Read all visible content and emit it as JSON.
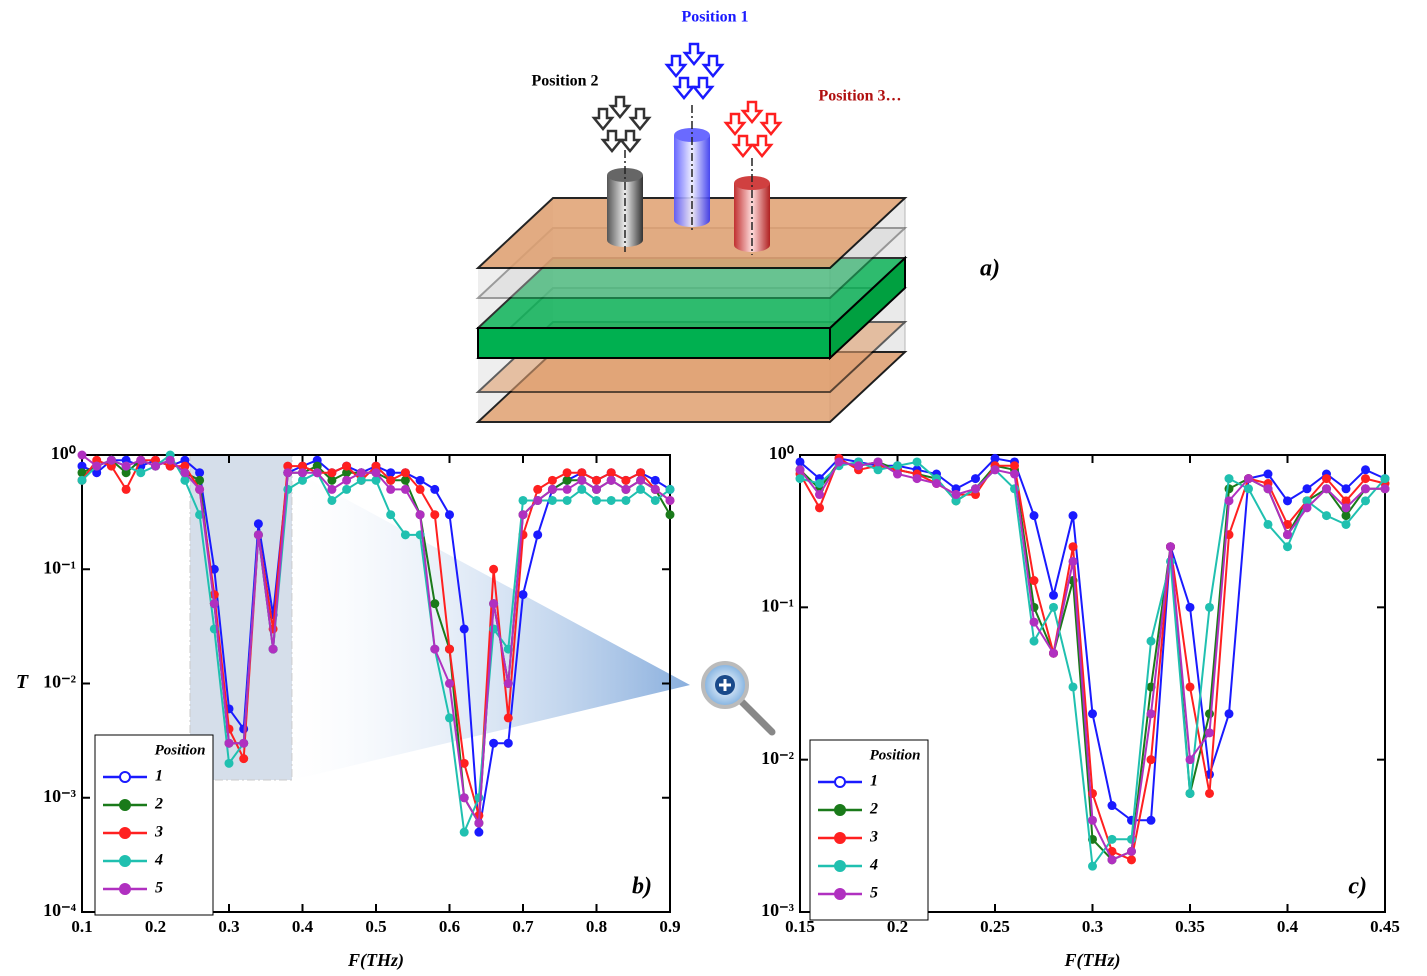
{
  "diagram": {
    "labels": [
      "Position 1",
      "Position 2",
      "Position 3…"
    ],
    "panel_label": "a)"
  },
  "chart_data": [
    {
      "type": "line",
      "log_y": true,
      "xlabel": "F(THz)",
      "ylabel": "T",
      "panel_label": "b)",
      "legend_title": "Position",
      "legend": "lower left",
      "xlim": [
        0.1,
        0.9
      ],
      "xticks": [
        0.1,
        0.2,
        0.3,
        0.4,
        0.5,
        0.6,
        0.7,
        0.8,
        0.9
      ],
      "ylim": [
        0.0001,
        1
      ],
      "yticks": [
        {
          "value": 0.0001,
          "label": "10⁻⁴"
        },
        {
          "value": 0.001,
          "label": "10⁻³"
        },
        {
          "value": 0.01,
          "label": "10⁻²"
        },
        {
          "value": 0.1,
          "label": "10⁻¹"
        },
        {
          "value": 1,
          "label": "10⁰"
        }
      ],
      "x": [
        0.1,
        0.12,
        0.14,
        0.16,
        0.18,
        0.2,
        0.22,
        0.24,
        0.26,
        0.28,
        0.3,
        0.32,
        0.34,
        0.36,
        0.38,
        0.4,
        0.42,
        0.44,
        0.46,
        0.48,
        0.5,
        0.52,
        0.54,
        0.56,
        0.58,
        0.6,
        0.62,
        0.64,
        0.66,
        0.68,
        0.7,
        0.72,
        0.74,
        0.76,
        0.78,
        0.8,
        0.82,
        0.84,
        0.86,
        0.88,
        0.9
      ],
      "series": [
        {
          "name": "1",
          "color": "#1a1aff",
          "values": [
            0.8,
            0.7,
            0.9,
            0.9,
            0.8,
            0.9,
            0.8,
            0.9,
            0.7,
            0.1,
            0.006,
            0.004,
            0.25,
            0.04,
            0.7,
            0.8,
            0.9,
            0.7,
            0.8,
            0.7,
            0.8,
            0.7,
            0.7,
            0.6,
            0.5,
            0.3,
            0.03,
            0.0005,
            0.003,
            0.003,
            0.06,
            0.2,
            0.5,
            0.6,
            0.7,
            0.6,
            0.7,
            0.6,
            0.7,
            0.6,
            0.5
          ]
        },
        {
          "name": "2",
          "color": "#1a7a1a",
          "values": [
            0.7,
            0.8,
            0.9,
            0.7,
            0.9,
            0.8,
            0.9,
            0.7,
            0.6,
            0.05,
            0.003,
            0.003,
            0.2,
            0.02,
            0.7,
            0.7,
            0.8,
            0.6,
            0.7,
            0.7,
            0.7,
            0.6,
            0.6,
            0.3,
            0.05,
            0.02,
            0.001,
            0.0006,
            0.05,
            0.01,
            0.3,
            0.4,
            0.5,
            0.6,
            0.6,
            0.5,
            0.6,
            0.5,
            0.6,
            0.5,
            0.3
          ]
        },
        {
          "name": "3",
          "color": "#ff2020",
          "values": [
            0.6,
            0.9,
            0.8,
            0.5,
            0.9,
            0.9,
            0.8,
            0.8,
            0.5,
            0.06,
            0.004,
            0.0022,
            0.2,
            0.03,
            0.8,
            0.8,
            0.7,
            0.7,
            0.8,
            0.6,
            0.8,
            0.6,
            0.7,
            0.5,
            0.3,
            0.02,
            0.002,
            0.0007,
            0.1,
            0.005,
            0.2,
            0.5,
            0.6,
            0.7,
            0.7,
            0.6,
            0.7,
            0.6,
            0.7,
            0.5,
            0.4
          ]
        },
        {
          "name": "4",
          "color": "#20c0b0",
          "values": [
            0.6,
            0.8,
            0.9,
            0.8,
            0.7,
            0.8,
            1,
            0.6,
            0.3,
            0.03,
            0.002,
            0.003,
            0.2,
            0.02,
            0.5,
            0.6,
            0.7,
            0.4,
            0.5,
            0.6,
            0.6,
            0.3,
            0.2,
            0.2,
            0.02,
            0.005,
            0.0005,
            0.001,
            0.03,
            0.02,
            0.4,
            0.4,
            0.4,
            0.4,
            0.5,
            0.4,
            0.4,
            0.4,
            0.5,
            0.4,
            0.5
          ]
        },
        {
          "name": "5",
          "color": "#b030c0",
          "values": [
            1,
            0.8,
            0.9,
            0.8,
            0.9,
            0.8,
            0.9,
            0.7,
            0.5,
            0.05,
            0.003,
            0.003,
            0.2,
            0.02,
            0.7,
            0.7,
            0.7,
            0.5,
            0.6,
            0.7,
            0.7,
            0.5,
            0.5,
            0.3,
            0.02,
            0.01,
            0.001,
            0.0006,
            0.05,
            0.01,
            0.3,
            0.4,
            0.5,
            0.5,
            0.6,
            0.5,
            0.6,
            0.5,
            0.6,
            0.5,
            0.4
          ]
        }
      ]
    },
    {
      "type": "line",
      "log_y": true,
      "xlabel": "F(THz)",
      "panel_label": "c)",
      "legend_title": "Position",
      "legend": "lower left",
      "xlim": [
        0.15,
        0.45
      ],
      "xticks": [
        0.15,
        0.2,
        0.25,
        0.3,
        0.35,
        0.4,
        0.45
      ],
      "ylim": [
        0.001,
        1
      ],
      "yticks": [
        {
          "value": 0.001,
          "label": "10⁻³"
        },
        {
          "value": 0.01,
          "label": "10⁻²"
        },
        {
          "value": 0.1,
          "label": "10⁻¹"
        },
        {
          "value": 1,
          "label": "10⁰"
        }
      ],
      "x": [
        0.15,
        0.16,
        0.17,
        0.18,
        0.19,
        0.2,
        0.21,
        0.22,
        0.23,
        0.24,
        0.25,
        0.26,
        0.27,
        0.28,
        0.29,
        0.3,
        0.31,
        0.32,
        0.33,
        0.34,
        0.35,
        0.36,
        0.37,
        0.38,
        0.39,
        0.4,
        0.41,
        0.42,
        0.43,
        0.44,
        0.45
      ],
      "series": [
        {
          "name": "1",
          "color": "#1a1aff",
          "values": [
            0.9,
            0.7,
            0.95,
            0.9,
            0.85,
            0.85,
            0.8,
            0.75,
            0.6,
            0.7,
            0.95,
            0.9,
            0.4,
            0.12,
            0.4,
            0.02,
            0.005,
            0.004,
            0.004,
            0.25,
            0.1,
            0.008,
            0.02,
            0.7,
            0.75,
            0.5,
            0.6,
            0.75,
            0.6,
            0.8,
            0.7
          ]
        },
        {
          "name": "2",
          "color": "#1a7a1a",
          "values": [
            0.8,
            0.6,
            0.9,
            0.85,
            0.9,
            0.8,
            0.75,
            0.7,
            0.5,
            0.6,
            0.85,
            0.8,
            0.1,
            0.05,
            0.15,
            0.003,
            0.0022,
            0.0025,
            0.03,
            0.25,
            0.006,
            0.02,
            0.6,
            0.7,
            0.6,
            0.3,
            0.5,
            0.6,
            0.4,
            0.6,
            0.6
          ]
        },
        {
          "name": "3",
          "color": "#ff2020",
          "values": [
            0.75,
            0.45,
            0.95,
            0.8,
            0.85,
            0.8,
            0.75,
            0.65,
            0.55,
            0.55,
            0.85,
            0.85,
            0.15,
            0.05,
            0.25,
            0.006,
            0.0025,
            0.0022,
            0.01,
            0.25,
            0.03,
            0.006,
            0.3,
            0.7,
            0.65,
            0.35,
            0.5,
            0.7,
            0.5,
            0.7,
            0.65
          ]
        },
        {
          "name": "4",
          "color": "#20c0b0",
          "values": [
            0.7,
            0.65,
            0.85,
            0.9,
            0.8,
            0.85,
            0.9,
            0.7,
            0.5,
            0.6,
            0.8,
            0.6,
            0.06,
            0.1,
            0.03,
            0.002,
            0.003,
            0.003,
            0.06,
            0.2,
            0.006,
            0.1,
            0.7,
            0.6,
            0.35,
            0.25,
            0.5,
            0.4,
            0.35,
            0.5,
            0.7
          ]
        },
        {
          "name": "5",
          "color": "#b030c0",
          "values": [
            0.8,
            0.55,
            0.9,
            0.85,
            0.9,
            0.75,
            0.7,
            0.65,
            0.55,
            0.6,
            0.8,
            0.75,
            0.08,
            0.05,
            0.2,
            0.004,
            0.0022,
            0.0025,
            0.02,
            0.25,
            0.01,
            0.015,
            0.5,
            0.7,
            0.6,
            0.3,
            0.45,
            0.6,
            0.45,
            0.6,
            0.6
          ]
        }
      ]
    }
  ]
}
